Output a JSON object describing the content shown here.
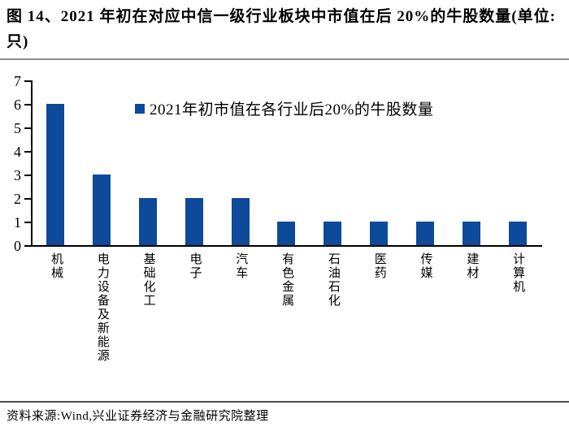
{
  "title": "图 14、2021 年初在对应中信一级行业板块中市值在后 20%的牛股数量(单位:只)",
  "source": "资料来源:Wind,兴业证券经济与金融研究院整理",
  "colors": {
    "bar": "#0d4a99",
    "legend_marker": "#0d4a99",
    "axis": "#000000",
    "title_separator": "#8c8c8c",
    "source_separator": "#4d4d4d"
  },
  "chart_data": {
    "type": "bar",
    "title": "2021年初在对应中信一级行业板块中市值在后20%的牛股数量(单位:只)",
    "categories": [
      "机械",
      "电力设备及新能源",
      "基础化工",
      "电子",
      "汽车",
      "有色金属",
      "石油石化",
      "医药",
      "传媒",
      "建材",
      "计算机"
    ],
    "values": [
      6,
      3,
      2,
      2,
      2,
      1,
      1,
      1,
      1,
      1,
      1
    ],
    "legend": [
      "2021年初市值在各行业后20%的牛股数量"
    ],
    "xlabel": "",
    "ylabel": "",
    "ylim": [
      0,
      7
    ],
    "yticks": [
      0,
      1,
      2,
      3,
      4,
      5,
      6,
      7
    ],
    "grid": false,
    "legend_position": "inside-top-center",
    "bar_color": "#0d4a99"
  }
}
